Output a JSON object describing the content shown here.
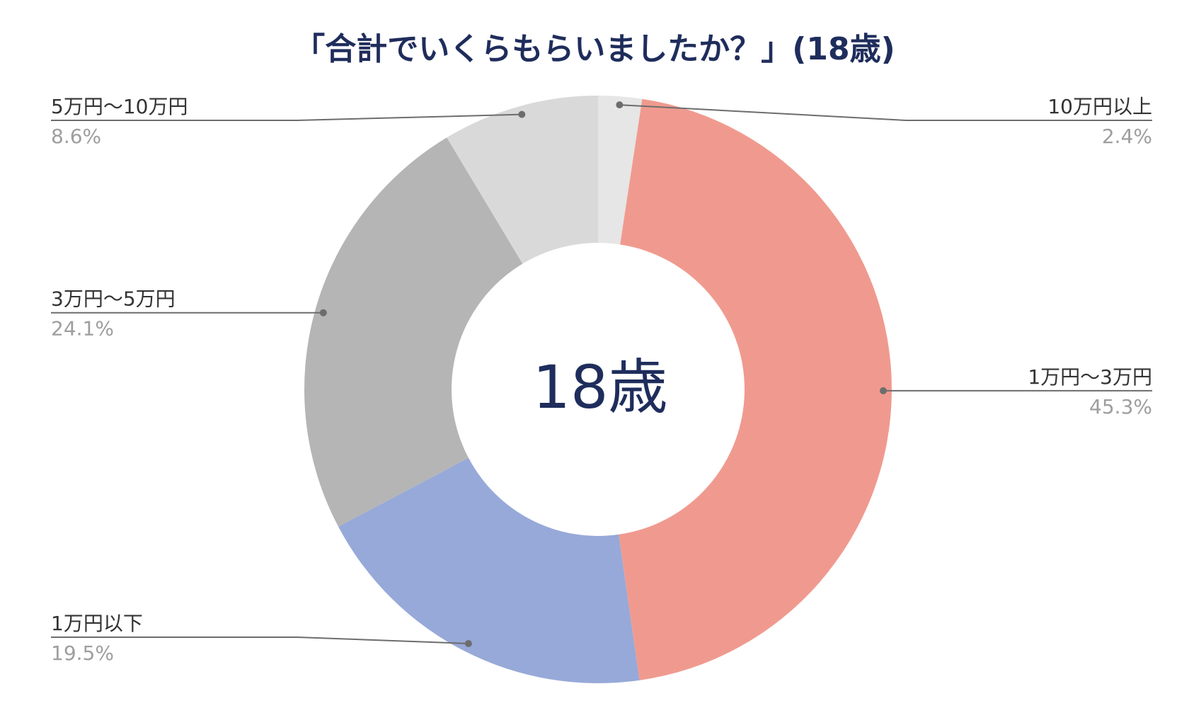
{
  "colors": {
    "title": "#1f2d5c",
    "center_text": "#1f2d5c",
    "label_name": "#333333",
    "label_pct": "#9e9e9e",
    "leader_line": "#6d6d6d",
    "background": "#ffffff"
  },
  "chart_data": {
    "type": "pie",
    "donut": true,
    "title": "「合計でいくらもらいましたか？」(18歳)",
    "center_label": "18歳",
    "start": "top (12 o'clock)",
    "direction": "clockwise",
    "slices": [
      {
        "label": "10万円以上",
        "value": 2.4,
        "value_label": "2.4%",
        "color": "#e6e6e6",
        "side": "right"
      },
      {
        "label": "1万円〜3万円",
        "value": 45.3,
        "value_label": "45.3%",
        "color": "#f09a8f",
        "side": "right"
      },
      {
        "label": "1万円以下",
        "value": 19.5,
        "value_label": "19.5%",
        "color": "#97a9d8",
        "side": "left"
      },
      {
        "label": "3万円〜5万円",
        "value": 24.1,
        "value_label": "24.1%",
        "color": "#b5b5b5",
        "side": "left"
      },
      {
        "label": "5万円〜10万円",
        "value": 8.6,
        "value_label": "8.6%",
        "color": "#d9d9d9",
        "side": "left"
      }
    ]
  }
}
